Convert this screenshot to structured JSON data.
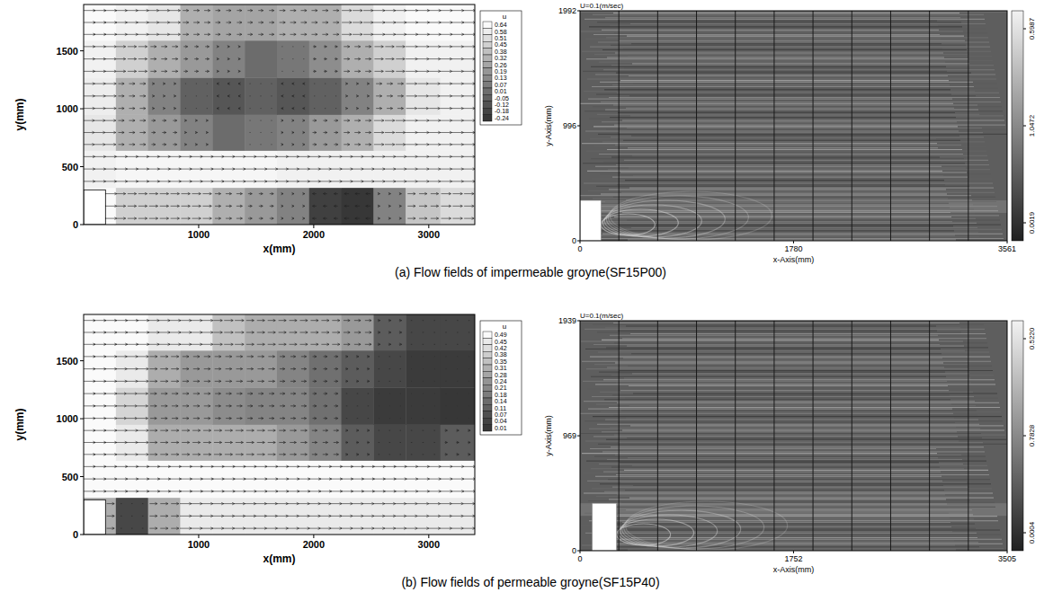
{
  "captions": [
    "(a) Flow fields of impermeable groyne(SF15P00)",
    "(b) Flow fields of permeable groyne(SF15P40)"
  ],
  "chart_data": [
    {
      "type": "heatmap",
      "x_label": "x(mm)",
      "y_label": "y(mm)",
      "xlim": [
        0,
        3400
      ],
      "ylim": [
        0,
        1900
      ],
      "xticks": [
        1000,
        2000,
        3000
      ],
      "yticks": [
        0,
        500,
        1000,
        1500
      ],
      "x_edges": [
        0,
        280,
        560,
        840,
        1120,
        1400,
        1680,
        1960,
        2240,
        2520,
        2800,
        3100,
        3400
      ],
      "y_edges": [
        0,
        320,
        640,
        950,
        1270,
        1590,
        1900
      ],
      "cells": [
        [
          0.64,
          0.45,
          0.45,
          0.45,
          0.3,
          0.2,
          0.1,
          -0.2,
          -0.24,
          0.1,
          0.4,
          0.5
        ],
        [
          0.6,
          0.62,
          0.62,
          0.62,
          0.62,
          0.62,
          0.6,
          0.6,
          0.6,
          0.6,
          0.6,
          0.6
        ],
        [
          0.55,
          0.3,
          0.2,
          0.1,
          0.0,
          0.05,
          0.1,
          0.2,
          0.3,
          0.5,
          0.6,
          0.6
        ],
        [
          0.58,
          0.3,
          0.1,
          -0.05,
          -0.1,
          -0.05,
          -0.1,
          -0.05,
          0.1,
          0.3,
          0.55,
          0.6
        ],
        [
          0.6,
          0.45,
          0.3,
          0.2,
          0.1,
          0.0,
          0.05,
          0.15,
          0.3,
          0.45,
          0.6,
          0.6
        ],
        [
          0.64,
          0.6,
          0.55,
          0.3,
          0.25,
          0.25,
          0.3,
          0.3,
          0.5,
          0.6,
          0.64,
          0.64
        ]
      ],
      "colorbar_title": "u",
      "colorbar_range": [
        -0.24,
        0.64
      ],
      "colorbar_ticks": [
        0.64,
        0.58,
        0.51,
        0.45,
        0.38,
        0.32,
        0.26,
        0.19,
        0.13,
        0.07,
        0.01,
        -0.05,
        -0.12,
        -0.18,
        -0.24
      ],
      "groyne": {
        "x": [
          0,
          190
        ],
        "y": [
          0,
          300
        ]
      }
    },
    {
      "type": "image",
      "annotation": "U=0.1(m/sec)",
      "x_label": "x-Axis(mm)",
      "y_label": "y-Axis(mm)",
      "xlim": [
        0,
        3561
      ],
      "ylim": [
        0,
        1992
      ],
      "xticks": [
        0,
        1780,
        3561
      ],
      "yticks": [
        0,
        996,
        1992
      ],
      "colorbar_labels": [
        0.0019,
        1.0472,
        0.5987
      ],
      "groyne": {
        "x": [
          0,
          175
        ],
        "y": [
          0,
          350
        ]
      }
    },
    {
      "type": "heatmap",
      "x_label": "x(mm)",
      "y_label": "y(mm)",
      "xlim": [
        0,
        3400
      ],
      "ylim": [
        0,
        1900
      ],
      "xticks": [
        1000,
        2000,
        3000
      ],
      "yticks": [
        0,
        500,
        1000,
        1500
      ],
      "x_edges": [
        0,
        280,
        560,
        840,
        1120,
        1400,
        1680,
        1960,
        2240,
        2520,
        2800,
        3100,
        3400
      ],
      "y_edges": [
        0,
        320,
        640,
        950,
        1270,
        1590,
        1900
      ],
      "cells": [
        [
          0.3,
          0.05,
          0.3,
          0.45,
          0.45,
          0.45,
          0.45,
          0.45,
          0.45,
          0.45,
          0.45,
          0.45
        ],
        [
          0.49,
          0.49,
          0.49,
          0.49,
          0.49,
          0.49,
          0.49,
          0.49,
          0.49,
          0.49,
          0.49,
          0.49
        ],
        [
          0.49,
          0.45,
          0.3,
          0.3,
          0.3,
          0.3,
          0.25,
          0.2,
          0.1,
          0.05,
          0.05,
          0.1
        ],
        [
          0.49,
          0.4,
          0.25,
          0.25,
          0.22,
          0.2,
          0.2,
          0.15,
          0.05,
          0.02,
          0.02,
          0.01
        ],
        [
          0.49,
          0.45,
          0.3,
          0.25,
          0.25,
          0.25,
          0.2,
          0.15,
          0.1,
          0.05,
          0.02,
          0.02
        ],
        [
          0.49,
          0.49,
          0.45,
          0.45,
          0.35,
          0.3,
          0.3,
          0.3,
          0.25,
          0.1,
          0.05,
          0.05
        ]
      ],
      "colorbar_title": "u",
      "colorbar_range": [
        0.01,
        0.49
      ],
      "colorbar_ticks": [
        0.49,
        0.45,
        0.42,
        0.38,
        0.35,
        0.31,
        0.28,
        0.24,
        0.21,
        0.18,
        0.14,
        0.11,
        0.07,
        0.04,
        0.01
      ],
      "groyne": {
        "x": [
          0,
          190
        ],
        "y": [
          0,
          300
        ]
      }
    },
    {
      "type": "image",
      "annotation": "U=0.1(m/sec)",
      "x_label": "x-Axis(mm)",
      "y_label": "y-Axis(mm)",
      "xlim": [
        0,
        3505
      ],
      "ylim": [
        0,
        1939
      ],
      "xticks": [
        0,
        1752,
        3505
      ],
      "yticks": [
        0,
        969,
        1939
      ],
      "colorbar_labels": [
        0.0004,
        0.7828,
        {
          "value": 0.522,
          "label": "0.5220"
        }
      ],
      "groyne": {
        "x": [
          100,
          300
        ],
        "y": [
          0,
          400
        ]
      }
    }
  ]
}
